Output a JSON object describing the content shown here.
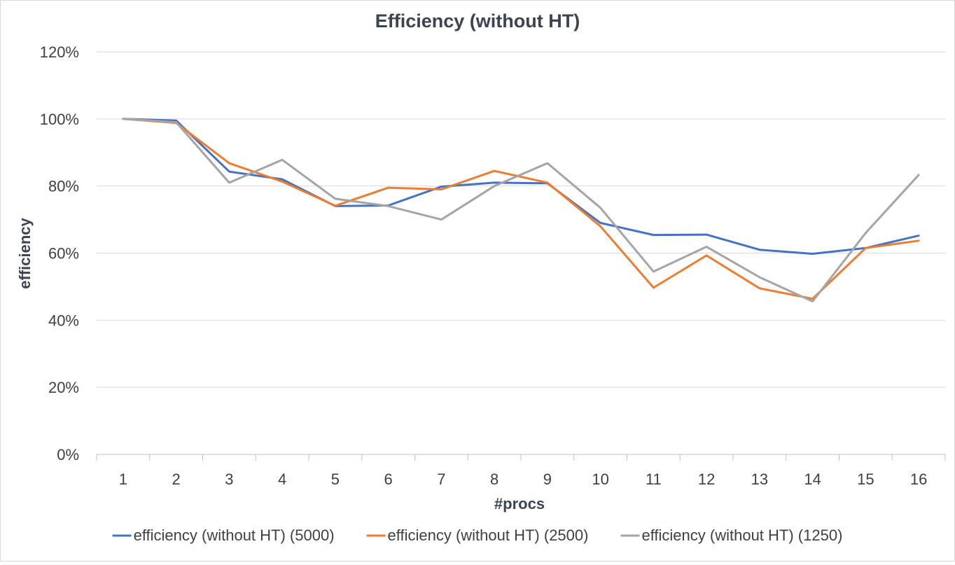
{
  "chart_data": {
    "type": "line",
    "title": "Efficiency (without HT)",
    "xlabel": "#procs",
    "ylabel": "efficiency",
    "x": [
      1,
      2,
      3,
      4,
      5,
      6,
      7,
      8,
      9,
      10,
      11,
      12,
      13,
      14,
      15,
      16
    ],
    "y_ticks": [
      "0%",
      "20%",
      "40%",
      "60%",
      "80%",
      "100%",
      "120%"
    ],
    "ylim": [
      0,
      1.2
    ],
    "grid": true,
    "legend_position": "bottom",
    "series": [
      {
        "name": "efficiency (without HT) (5000)",
        "color": "#4472c4",
        "values": [
          1.0,
          0.995,
          0.843,
          0.82,
          0.74,
          0.742,
          0.798,
          0.81,
          0.808,
          0.69,
          0.654,
          0.655,
          0.61,
          0.598,
          0.615,
          0.652
        ]
      },
      {
        "name": "efficiency (without HT) (2500)",
        "color": "#ed7d31",
        "values": [
          1.0,
          0.988,
          0.868,
          0.813,
          0.741,
          0.795,
          0.79,
          0.845,
          0.81,
          0.68,
          0.497,
          0.593,
          0.495,
          0.464,
          0.615,
          0.637
        ]
      },
      {
        "name": "efficiency (without HT) (1250)",
        "color": "#a5a5a5",
        "values": [
          1.0,
          0.99,
          0.81,
          0.878,
          0.762,
          0.74,
          0.7,
          0.8,
          0.868,
          0.735,
          0.545,
          0.619,
          0.528,
          0.456,
          0.66,
          0.833
        ]
      }
    ]
  }
}
